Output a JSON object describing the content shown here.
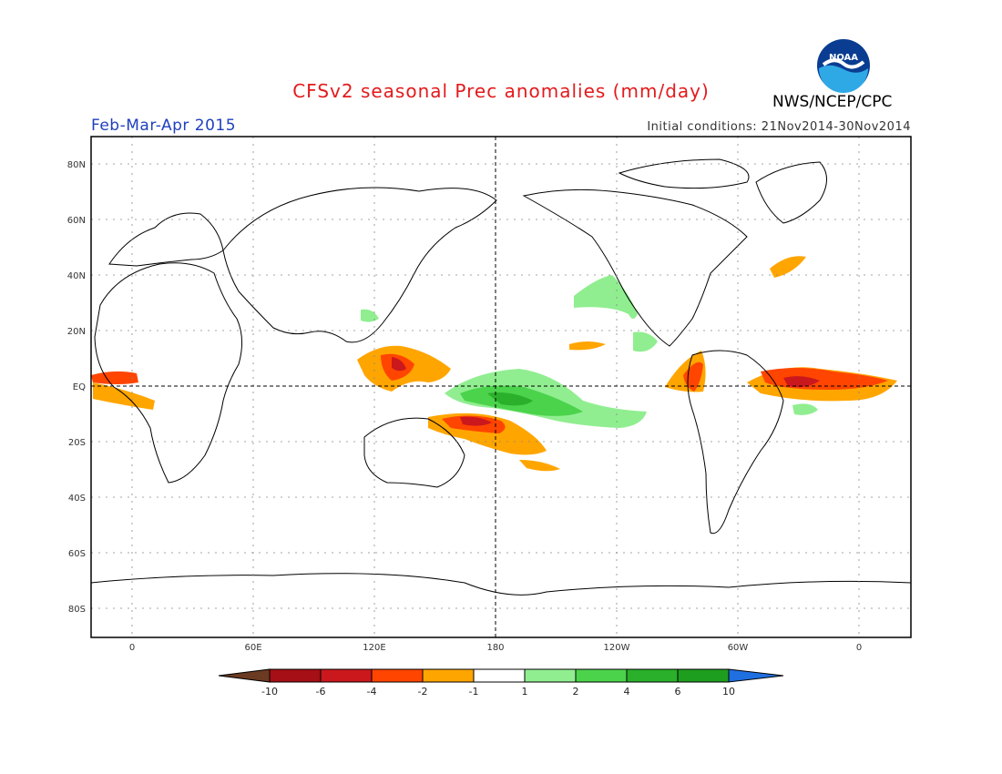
{
  "header": {
    "title": "CFSv2 seasonal Prec anomalies (mm/day)",
    "season": "Feb-Mar-Apr 2015",
    "init_conditions": "Initial conditions: 21Nov2014-30Nov2014",
    "agency": "NWS/NCEP/CPC",
    "logo_text": "NOAA"
  },
  "map": {
    "lat_labels": [
      "80N",
      "60N",
      "40N",
      "20N",
      "EQ",
      "20S",
      "40S",
      "60S",
      "80S"
    ],
    "lon_labels": [
      "0",
      "60E",
      "120E",
      "180",
      "120W",
      "60W",
      "0"
    ]
  },
  "colorbar": {
    "labels": [
      "-10",
      "-6",
      "-4",
      "-2",
      "-1",
      "1",
      "2",
      "4",
      "6",
      "10"
    ],
    "colors": [
      "#6b3a22",
      "#a50f15",
      "#cb181d",
      "#ff4500",
      "#ffa500",
      "#ffffff",
      "#90ee90",
      "#4bd34b",
      "#2ab02a",
      "#1e9e1e",
      "#1f6fe0"
    ]
  },
  "colors": {
    "title": "#e31a1c",
    "season": "#1f3fbf",
    "coast": "#000000",
    "grid": "#888888"
  }
}
